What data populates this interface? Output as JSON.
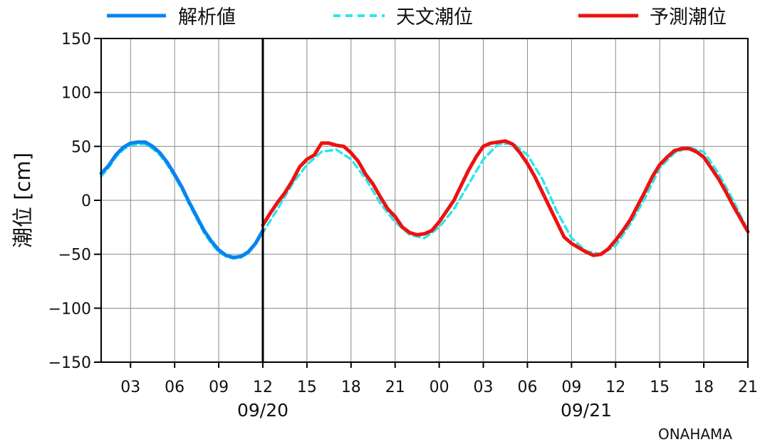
{
  "colors": {
    "analysis": "#0a84f0",
    "astronomical": "#2ee6ea",
    "forecast": "#ee1111"
  },
  "chart_data": {
    "type": "line",
    "ylabel": "潮位 [cm]",
    "station": "ONAHAMA",
    "ylim": [
      -150,
      150
    ],
    "y_ticks": [
      150,
      100,
      50,
      0,
      -50,
      -100,
      -150
    ],
    "y_tick_labels": [
      "150",
      "100",
      "50",
      "0",
      "−50",
      "−100",
      "−150"
    ],
    "xlim_hours": [
      1,
      45
    ],
    "x_ticks": [
      {
        "hour": 3,
        "label": "03"
      },
      {
        "hour": 6,
        "label": "06"
      },
      {
        "hour": 9,
        "label": "09"
      },
      {
        "hour": 12,
        "label": "12"
      },
      {
        "hour": 15,
        "label": "15"
      },
      {
        "hour": 18,
        "label": "18"
      },
      {
        "hour": 21,
        "label": "21"
      },
      {
        "hour": 24,
        "label": "00"
      },
      {
        "hour": 27,
        "label": "03"
      },
      {
        "hour": 30,
        "label": "06"
      },
      {
        "hour": 33,
        "label": "09"
      },
      {
        "hour": 36,
        "label": "12"
      },
      {
        "hour": 39,
        "label": "15"
      },
      {
        "hour": 42,
        "label": "18"
      },
      {
        "hour": 45,
        "label": "21"
      }
    ],
    "date_labels": [
      {
        "hour": 12,
        "label": "09/20"
      },
      {
        "hour": 34,
        "label": "09/21"
      }
    ],
    "now_marker_hour": 12,
    "grid": true,
    "legend_position": "top",
    "series": [
      {
        "name": "解析値",
        "style": "solid",
        "color": "#0a84f0",
        "points": [
          [
            1.0,
            25
          ],
          [
            1.5,
            32
          ],
          [
            2.0,
            42
          ],
          [
            2.5,
            49
          ],
          [
            3.0,
            53
          ],
          [
            3.5,
            54
          ],
          [
            4.0,
            54
          ],
          [
            4.5,
            50
          ],
          [
            5.0,
            44
          ],
          [
            5.5,
            35
          ],
          [
            6.0,
            24
          ],
          [
            6.5,
            12
          ],
          [
            7.0,
            -2
          ],
          [
            7.5,
            -15
          ],
          [
            8.0,
            -28
          ],
          [
            8.5,
            -38
          ],
          [
            9.0,
            -46
          ],
          [
            9.5,
            -51
          ],
          [
            10.0,
            -53
          ],
          [
            10.5,
            -52
          ],
          [
            11.0,
            -48
          ],
          [
            11.5,
            -40
          ],
          [
            12.0,
            -28
          ]
        ]
      },
      {
        "name": "天文潮位",
        "style": "dashed",
        "color": "#2ee6ea",
        "points": [
          [
            1.0,
            22
          ],
          [
            1.5,
            30
          ],
          [
            2.0,
            40
          ],
          [
            2.5,
            47
          ],
          [
            3.0,
            51
          ],
          [
            3.5,
            52
          ],
          [
            4.0,
            52
          ],
          [
            4.5,
            48
          ],
          [
            5.0,
            42
          ],
          [
            5.5,
            33
          ],
          [
            6.0,
            22
          ],
          [
            6.5,
            10
          ],
          [
            7.0,
            -4
          ],
          [
            7.5,
            -17
          ],
          [
            8.0,
            -30
          ],
          [
            8.5,
            -40
          ],
          [
            9.0,
            -48
          ],
          [
            9.5,
            -52
          ],
          [
            10.0,
            -54
          ],
          [
            10.5,
            -53
          ],
          [
            11.0,
            -49
          ],
          [
            11.5,
            -41
          ],
          [
            12.0,
            -30
          ],
          [
            13.0,
            -8
          ],
          [
            14.0,
            15
          ],
          [
            15.0,
            33
          ],
          [
            16.0,
            45
          ],
          [
            17.0,
            47
          ],
          [
            18.0,
            38
          ],
          [
            19.0,
            20
          ],
          [
            20.0,
            -3
          ],
          [
            21.0,
            -20
          ],
          [
            22.0,
            -32
          ],
          [
            23.0,
            -35
          ],
          [
            24.0,
            -25
          ],
          [
            25.0,
            -8
          ],
          [
            26.0,
            15
          ],
          [
            27.0,
            38
          ],
          [
            28.0,
            52
          ],
          [
            29.0,
            53
          ],
          [
            30.0,
            42
          ],
          [
            31.0,
            20
          ],
          [
            32.0,
            -10
          ],
          [
            33.0,
            -35
          ],
          [
            34.0,
            -47
          ],
          [
            35.0,
            -50
          ],
          [
            36.0,
            -42
          ],
          [
            37.0,
            -22
          ],
          [
            38.0,
            2
          ],
          [
            39.0,
            30
          ],
          [
            40.0,
            44
          ],
          [
            41.0,
            49
          ],
          [
            42.0,
            45
          ],
          [
            43.0,
            25
          ],
          [
            44.0,
            0
          ],
          [
            45.0,
            -28
          ]
        ]
      },
      {
        "name": "予測潮位",
        "style": "solid",
        "color": "#ee1111",
        "points": [
          [
            12.0,
            -23
          ],
          [
            12.5,
            -12
          ],
          [
            13.0,
            -2
          ],
          [
            13.5,
            7
          ],
          [
            14.0,
            18
          ],
          [
            14.5,
            31
          ],
          [
            15.0,
            38
          ],
          [
            15.5,
            42
          ],
          [
            16.0,
            53
          ],
          [
            16.5,
            53
          ],
          [
            17.0,
            51
          ],
          [
            17.5,
            50
          ],
          [
            18.0,
            44
          ],
          [
            18.5,
            36
          ],
          [
            19.0,
            24
          ],
          [
            19.5,
            15
          ],
          [
            20.0,
            3
          ],
          [
            20.5,
            -8
          ],
          [
            21.0,
            -15
          ],
          [
            21.5,
            -25
          ],
          [
            22.0,
            -30
          ],
          [
            22.5,
            -32
          ],
          [
            23.0,
            -31
          ],
          [
            23.5,
            -28
          ],
          [
            24.0,
            -20
          ],
          [
            24.5,
            -10
          ],
          [
            25.0,
            0
          ],
          [
            25.5,
            14
          ],
          [
            26.0,
            28
          ],
          [
            26.5,
            40
          ],
          [
            27.0,
            50
          ],
          [
            27.5,
            53
          ],
          [
            28.0,
            54
          ],
          [
            28.5,
            55
          ],
          [
            29.0,
            52
          ],
          [
            29.5,
            44
          ],
          [
            30.0,
            34
          ],
          [
            30.5,
            22
          ],
          [
            31.0,
            8
          ],
          [
            31.5,
            -6
          ],
          [
            32.0,
            -20
          ],
          [
            32.5,
            -34
          ],
          [
            33.0,
            -40
          ],
          [
            33.5,
            -44
          ],
          [
            34.0,
            -48
          ],
          [
            34.5,
            -51
          ],
          [
            35.0,
            -50
          ],
          [
            35.5,
            -45
          ],
          [
            36.0,
            -37
          ],
          [
            36.5,
            -28
          ],
          [
            37.0,
            -18
          ],
          [
            37.5,
            -5
          ],
          [
            38.0,
            8
          ],
          [
            38.5,
            22
          ],
          [
            39.0,
            33
          ],
          [
            39.5,
            40
          ],
          [
            40.0,
            46
          ],
          [
            40.5,
            48
          ],
          [
            41.0,
            48
          ],
          [
            41.5,
            45
          ],
          [
            42.0,
            40
          ],
          [
            42.5,
            30
          ],
          [
            43.0,
            20
          ],
          [
            43.5,
            8
          ],
          [
            44.0,
            -5
          ],
          [
            44.5,
            -17
          ],
          [
            45.0,
            -29
          ]
        ]
      }
    ]
  }
}
